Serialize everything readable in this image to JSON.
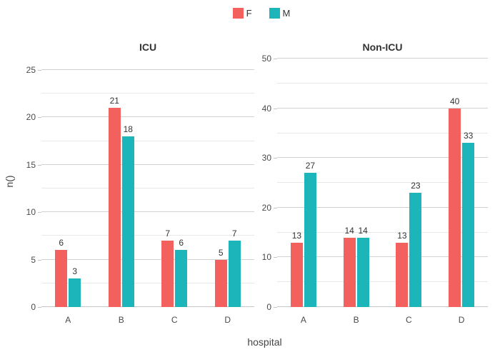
{
  "chart_data": {
    "type": "bar",
    "title": "",
    "xlabel": "hospital",
    "ylabel": "n()",
    "grid": true,
    "bar_value_labels": true,
    "legend_position": "top-center",
    "categories": [
      "A",
      "B",
      "C",
      "D"
    ],
    "legend": [
      {
        "label": "F",
        "color": "#F2615E"
      },
      {
        "label": "M",
        "color": "#1CB5BA"
      }
    ],
    "facets": [
      {
        "title": "ICU",
        "ylim": [
          0,
          26.5
        ],
        "yticks": [
          0,
          5,
          10,
          15,
          20,
          25
        ],
        "minor_ticks": [
          2.5,
          7.5,
          12.5,
          17.5,
          22.5
        ],
        "series": [
          {
            "name": "F",
            "color": "#F2615E",
            "values": [
              6,
              21,
              7,
              5
            ]
          },
          {
            "name": "M",
            "color": "#1CB5BA",
            "values": [
              3,
              18,
              6,
              7
            ]
          }
        ]
      },
      {
        "title": "Non-ICU",
        "ylim": [
          0,
          50.6
        ],
        "yticks": [
          0,
          10,
          20,
          30,
          40,
          50
        ],
        "minor_ticks": [
          5,
          15,
          25,
          35,
          45
        ],
        "series": [
          {
            "name": "F",
            "color": "#F2615E",
            "values": [
              13,
              14,
              13,
              40
            ]
          },
          {
            "name": "M",
            "color": "#1CB5BA",
            "values": [
              27,
              14,
              23,
              33
            ]
          }
        ]
      }
    ]
  },
  "colors": {
    "series_f": "#F2615E",
    "series_m": "#1CB5BA",
    "gridline_major": "#d2d2d2",
    "gridline_minor": "#e8e8e8",
    "axis_line": "#c6c6c6",
    "text": "#333333"
  }
}
